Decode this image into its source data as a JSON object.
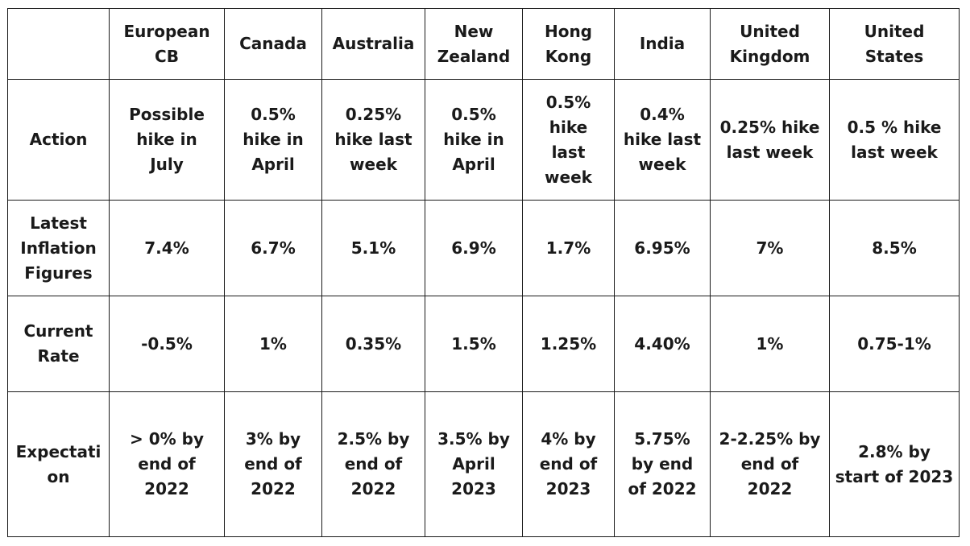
{
  "table": {
    "columns": [
      [
        "European",
        "CB"
      ],
      [
        "Canada"
      ],
      [
        "Australia"
      ],
      [
        "New",
        "Zealand"
      ],
      [
        "Hong",
        "Kong"
      ],
      [
        "India"
      ],
      [
        "United",
        "Kingdom"
      ],
      [
        "United",
        "States"
      ]
    ],
    "rows": [
      {
        "label": [
          "Action"
        ],
        "cells": [
          [
            "Possible",
            "hike in",
            "July"
          ],
          [
            "0.5%",
            "hike in",
            "April"
          ],
          [
            "0.25%",
            "hike last",
            "week"
          ],
          [
            "0.5%",
            "hike in",
            "April"
          ],
          [
            "0.5%",
            "hike",
            "last",
            "week"
          ],
          [
            "0.4%",
            "hike last",
            "week"
          ],
          [
            "0.25% hike",
            "last week"
          ],
          [
            "0.5 % hike",
            "last week"
          ]
        ]
      },
      {
        "label": [
          "Latest",
          "Inflation",
          "Figures"
        ],
        "cells": [
          [
            "7.4%"
          ],
          [
            "6.7%"
          ],
          [
            "5.1%"
          ],
          [
            "6.9%"
          ],
          [
            "1.7%"
          ],
          [
            "6.95%"
          ],
          [
            "7%"
          ],
          [
            "8.5%"
          ]
        ]
      },
      {
        "label": [
          "Current",
          "Rate"
        ],
        "cells": [
          [
            "-0.5%"
          ],
          [
            "1%"
          ],
          [
            "0.35%"
          ],
          [
            "1.5%"
          ],
          [
            "1.25%"
          ],
          [
            "4.40%"
          ],
          [
            "1%"
          ],
          [
            "0.75-1%"
          ]
        ]
      },
      {
        "label": [
          "Expectati",
          "on"
        ],
        "cells": [
          [
            "> 0% by",
            "end of",
            "2022"
          ],
          [
            "3% by",
            "end of",
            "2022"
          ],
          [
            "2.5% by",
            "end of",
            "2022"
          ],
          [
            "3.5% by",
            "April",
            "2023"
          ],
          [
            "4% by",
            "end of",
            "2023"
          ],
          [
            "5.75%",
            "by end",
            "of 2022"
          ],
          [
            "2-2.25% by",
            "end of",
            "2022"
          ],
          [
            "2.8% by",
            "start of 2023"
          ]
        ]
      }
    ]
  }
}
